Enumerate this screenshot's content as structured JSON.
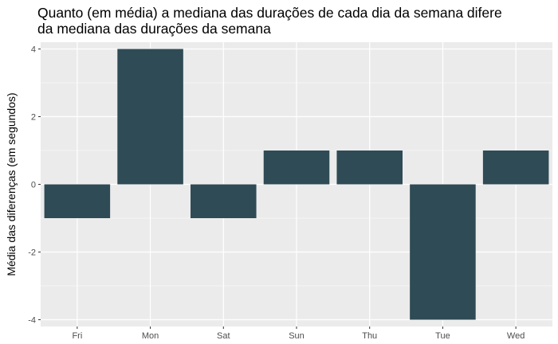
{
  "chart_data": {
    "type": "bar",
    "title_lines": [
      "Quanto (em média) a mediana das durações de cada dia da semana difere",
      "da mediana das durações da semana"
    ],
    "xlabel": "",
    "ylabel": "Média das diferenças (em segundos)",
    "categories": [
      "Fri",
      "Mon",
      "Sat",
      "Sun",
      "Thu",
      "Tue",
      "Wed"
    ],
    "values": [
      -1,
      4,
      -1,
      1,
      1,
      -4,
      1
    ],
    "ylim": [
      -4.2,
      4.2
    ],
    "yticks": [
      -4,
      -2,
      0,
      2,
      4
    ],
    "ytick_labels": [
      "-4",
      "-2",
      "0",
      "2",
      "4"
    ],
    "grid": true,
    "colors": {
      "bar": "#2f4b55",
      "panel": "#ebebeb",
      "grid_major": "#ffffff",
      "tick_text": "#4d4d4d",
      "tick_mark": "#333333"
    }
  }
}
